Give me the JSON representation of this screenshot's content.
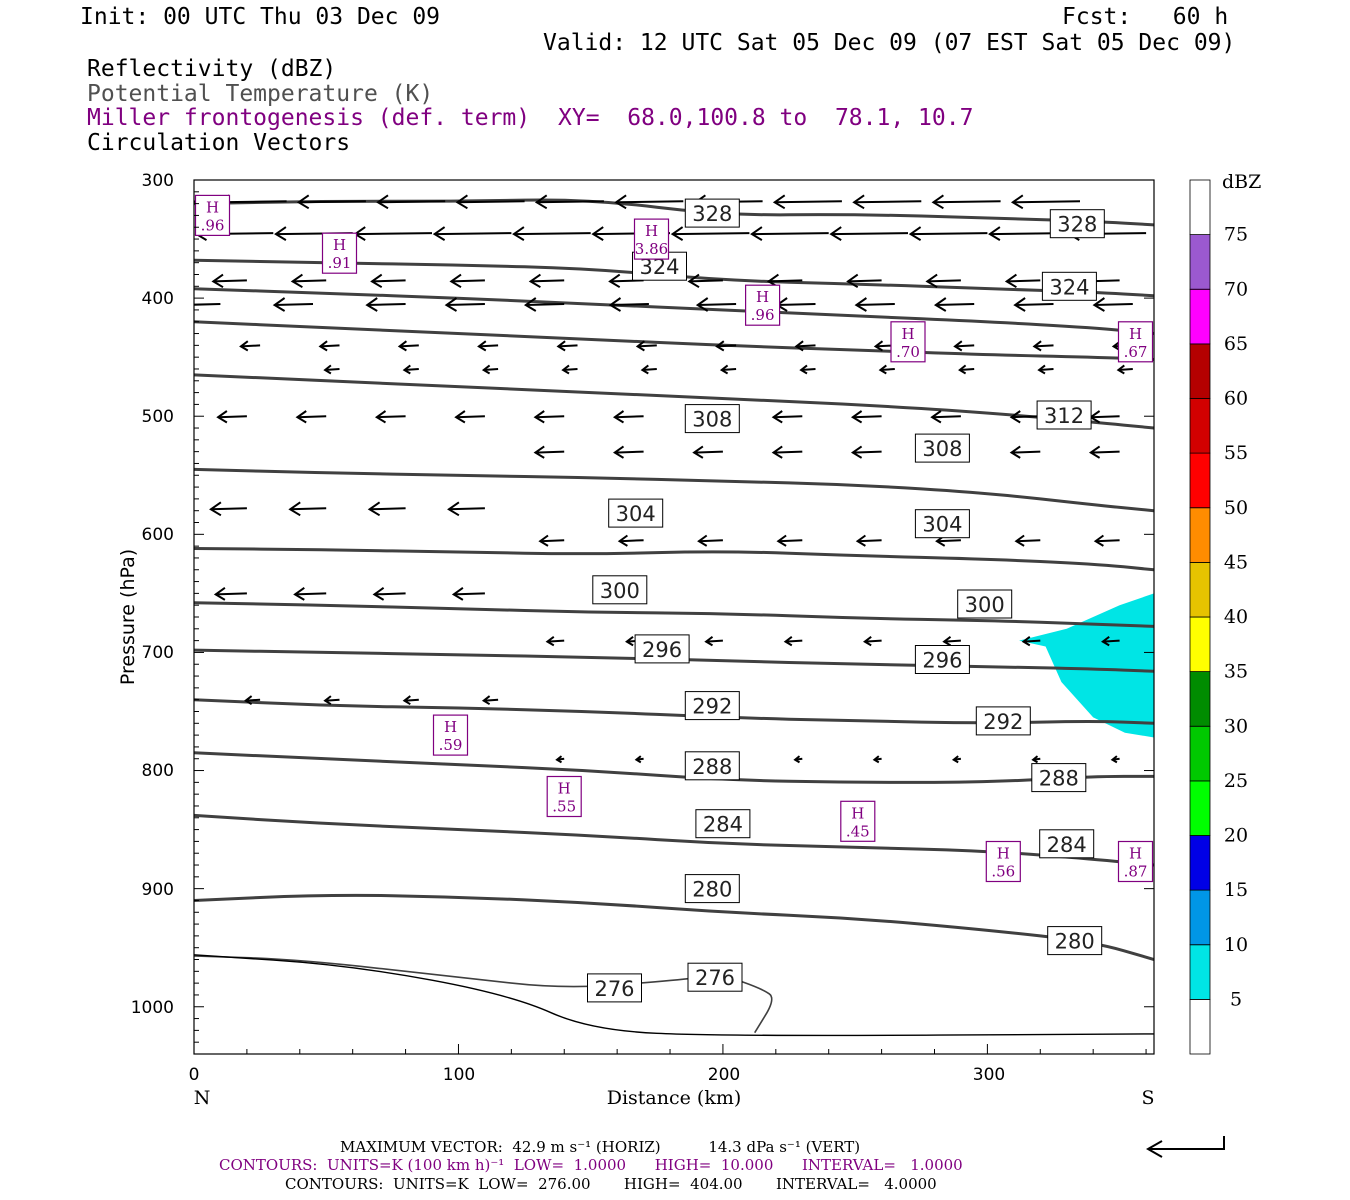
{
  "header": {
    "init": "Init: 00 UTC Thu 03 Dec 09",
    "fcst": "Fcst:   60 h",
    "valid": "Valid: 12 UTC Sat 05 Dec 09 (07 EST Sat 05 Dec 09)",
    "fields": [
      "Reflectivity (dBZ)",
      "Potential Temperature (K)",
      "Miller frontogenesis (def. term)",
      "Circulation Vectors"
    ],
    "xy": "XY=  68.0,100.8 to  78.1, 10.7"
  },
  "colors": {
    "purple": "#800080",
    "isentrope": "#404040",
    "reflectivity_5": "#00e5e5"
  },
  "chart_data": {
    "type": "cross-section",
    "xlabel": "Distance (km)",
    "ylabel": "Pressure (hPa)",
    "xlim": [
      0,
      363
    ],
    "ylim": [
      1040,
      300
    ],
    "x_ticks": [
      "0",
      "100",
      "200",
      "300"
    ],
    "y_ticks": [
      "300",
      "400",
      "500",
      "600",
      "700",
      "800",
      "900",
      "1000"
    ],
    "x_end_labels": {
      "left": "N",
      "right": "S"
    },
    "colorbar": {
      "unit": "dBZ",
      "levels": [
        "5",
        "10",
        "15",
        "20",
        "25",
        "30",
        "35",
        "40",
        "45",
        "50",
        "55",
        "60",
        "65",
        "70",
        "75"
      ],
      "colors": [
        "#ffffff",
        "#00e5e5",
        "#0096e6",
        "#0000e6",
        "#00ff00",
        "#00c800",
        "#008c00",
        "#ffff00",
        "#e6c300",
        "#ff8c00",
        "#ff0000",
        "#d20000",
        "#b40000",
        "#ff00ff",
        "#9b59d0",
        "#ffffff"
      ]
    },
    "isentropes": [
      {
        "value": 276,
        "pts": [
          [
            0,
            957
          ],
          [
            40,
            960
          ],
          [
            100,
            975
          ],
          [
            140,
            985
          ],
          [
            180,
            978
          ],
          [
            200,
            973
          ],
          [
            215,
            985
          ],
          [
            220,
            993
          ],
          [
            212,
            1022
          ]
        ]
      },
      {
        "value": 280,
        "pts": [
          [
            0,
            910
          ],
          [
            50,
            905
          ],
          [
            100,
            907
          ],
          [
            150,
            912
          ],
          [
            200,
            920
          ],
          [
            250,
            925
          ],
          [
            300,
            935
          ],
          [
            340,
            945
          ],
          [
            363,
            960
          ]
        ]
      },
      {
        "value": 284,
        "pts": [
          [
            0,
            838
          ],
          [
            50,
            845
          ],
          [
            100,
            850
          ],
          [
            150,
            855
          ],
          [
            200,
            862
          ],
          [
            250,
            865
          ],
          [
            300,
            868
          ],
          [
            340,
            875
          ],
          [
            363,
            880
          ]
        ]
      },
      {
        "value": 288,
        "pts": [
          [
            0,
            785
          ],
          [
            50,
            790
          ],
          [
            100,
            795
          ],
          [
            150,
            800
          ],
          [
            200,
            808
          ],
          [
            250,
            810
          ],
          [
            300,
            810
          ],
          [
            340,
            805
          ],
          [
            363,
            805
          ]
        ]
      },
      {
        "value": 292,
        "pts": [
          [
            0,
            740
          ],
          [
            50,
            745
          ],
          [
            100,
            747
          ],
          [
            150,
            750
          ],
          [
            200,
            755
          ],
          [
            250,
            758
          ],
          [
            300,
            760
          ],
          [
            340,
            758
          ],
          [
            363,
            760
          ]
        ]
      },
      {
        "value": 296,
        "pts": [
          [
            0,
            698
          ],
          [
            50,
            700
          ],
          [
            100,
            702
          ],
          [
            150,
            704
          ],
          [
            200,
            707
          ],
          [
            250,
            710
          ],
          [
            300,
            712
          ],
          [
            340,
            714
          ],
          [
            363,
            716
          ]
        ]
      },
      {
        "value": 300,
        "pts": [
          [
            0,
            658
          ],
          [
            50,
            660
          ],
          [
            100,
            663
          ],
          [
            150,
            666
          ],
          [
            200,
            667
          ],
          [
            250,
            671
          ],
          [
            300,
            673
          ],
          [
            340,
            676
          ],
          [
            363,
            678
          ]
        ]
      },
      {
        "value": 304,
        "pts": [
          [
            0,
            612
          ],
          [
            50,
            613
          ],
          [
            100,
            615
          ],
          [
            150,
            617
          ],
          [
            200,
            614
          ],
          [
            250,
            618
          ],
          [
            300,
            621
          ],
          [
            340,
            625
          ],
          [
            363,
            630
          ]
        ]
      },
      {
        "value": 308,
        "pts": [
          [
            0,
            545
          ],
          [
            50,
            548
          ],
          [
            100,
            550
          ],
          [
            150,
            552
          ],
          [
            200,
            555
          ],
          [
            250,
            558
          ],
          [
            300,
            565
          ],
          [
            340,
            575
          ],
          [
            363,
            580
          ]
        ]
      },
      {
        "value": 312,
        "pts": [
          [
            0,
            465
          ],
          [
            50,
            470
          ],
          [
            100,
            475
          ],
          [
            150,
            480
          ],
          [
            200,
            485
          ],
          [
            250,
            490
          ],
          [
            300,
            497
          ],
          [
            340,
            505
          ],
          [
            363,
            510
          ]
        ]
      },
      {
        "value": 316,
        "pts": [
          [
            0,
            420
          ],
          [
            50,
            425
          ],
          [
            100,
            430
          ],
          [
            150,
            435
          ],
          [
            200,
            440
          ],
          [
            250,
            444
          ],
          [
            300,
            448
          ],
          [
            340,
            450
          ],
          [
            363,
            452
          ]
        ]
      },
      {
        "value": 320,
        "pts": [
          [
            0,
            392
          ],
          [
            50,
            396
          ],
          [
            100,
            400
          ],
          [
            150,
            405
          ],
          [
            200,
            410
          ],
          [
            250,
            415
          ],
          [
            300,
            420
          ],
          [
            340,
            425
          ],
          [
            363,
            430
          ]
        ]
      },
      {
        "value": 324,
        "pts": [
          [
            0,
            368
          ],
          [
            50,
            370
          ],
          [
            100,
            372
          ],
          [
            150,
            375
          ],
          [
            200,
            385
          ],
          [
            250,
            388
          ],
          [
            300,
            392
          ],
          [
            340,
            395
          ],
          [
            363,
            398
          ]
        ]
      },
      {
        "value": 328,
        "pts": [
          [
            0,
            320
          ],
          [
            50,
            318
          ],
          [
            100,
            318
          ],
          [
            150,
            316
          ],
          [
            200,
            330
          ],
          [
            250,
            329
          ],
          [
            300,
            332
          ],
          [
            340,
            335
          ],
          [
            363,
            338
          ]
        ]
      }
    ],
    "isentrope_labels": [
      {
        "text": "328",
        "x": 196,
        "p": 328
      },
      {
        "text": "328",
        "x": 334,
        "p": 337
      },
      {
        "text": "324",
        "x": 176,
        "p": 373
      },
      {
        "text": "324",
        "x": 331,
        "p": 390
      },
      {
        "text": "312",
        "x": 329,
        "p": 499
      },
      {
        "text": "308",
        "x": 196,
        "p": 502
      },
      {
        "text": "308",
        "x": 283,
        "p": 527
      },
      {
        "text": "304",
        "x": 167,
        "p": 582
      },
      {
        "text": "304",
        "x": 283,
        "p": 591
      },
      {
        "text": "300",
        "x": 161,
        "p": 647
      },
      {
        "text": "300",
        "x": 299,
        "p": 659
      },
      {
        "text": "296",
        "x": 177,
        "p": 697
      },
      {
        "text": "296",
        "x": 283,
        "p": 706
      },
      {
        "text": "292",
        "x": 196,
        "p": 745
      },
      {
        "text": "292",
        "x": 306,
        "p": 758
      },
      {
        "text": "288",
        "x": 196,
        "p": 796
      },
      {
        "text": "288",
        "x": 327,
        "p": 806
      },
      {
        "text": "284",
        "x": 200,
        "p": 845
      },
      {
        "text": "284",
        "x": 330,
        "p": 862
      },
      {
        "text": "280",
        "x": 196,
        "p": 900
      },
      {
        "text": "280",
        "x": 333,
        "p": 944
      },
      {
        "text": "276",
        "x": 159,
        "p": 984
      },
      {
        "text": "276",
        "x": 197,
        "p": 975
      }
    ],
    "frontogenesis_maxima": [
      {
        "mark": "H",
        "value": ".96",
        "x": 7,
        "p": 330
      },
      {
        "mark": "H",
        "value": ".91",
        "x": 55,
        "p": 362
      },
      {
        "mark": "H",
        "value": "3.86",
        "x": 173,
        "p": 350
      },
      {
        "mark": "H",
        "value": ".96",
        "x": 215,
        "p": 406
      },
      {
        "mark": "H",
        "value": ".70",
        "x": 270,
        "p": 437
      },
      {
        "mark": "H",
        "value": ".67",
        "x": 356,
        "p": 437
      },
      {
        "mark": "H",
        "value": ".59",
        "x": 97,
        "p": 770
      },
      {
        "mark": "H",
        "value": ".55",
        "x": 140,
        "p": 822
      },
      {
        "mark": "H",
        "value": ".45",
        "x": 251,
        "p": 843
      },
      {
        "mark": "H",
        "value": ".56",
        "x": 306,
        "p": 877
      },
      {
        "mark": "H",
        "value": ".87",
        "x": 356,
        "p": 877
      }
    ],
    "reflectivity_area": {
      "value": "5",
      "pts": [
        [
          312,
          690
        ],
        [
          330,
          680
        ],
        [
          350,
          660
        ],
        [
          363,
          650
        ],
        [
          363,
          772
        ],
        [
          352,
          768
        ],
        [
          340,
          755
        ],
        [
          328,
          725
        ],
        [
          322,
          695
        ]
      ]
    },
    "vector_rows": [
      {
        "p": 318,
        "x": [
          5,
          35,
          65,
          95,
          125,
          155,
          185,
          215,
          245,
          275,
          305,
          335
        ],
        "u": -28
      },
      {
        "p": 345,
        "x": [
          30,
          60,
          90,
          120,
          150,
          180,
          210,
          240,
          270,
          300,
          330,
          360
        ],
        "u": -32
      },
      {
        "p": 385,
        "x": [
          20,
          50,
          80,
          110,
          140,
          170,
          200,
          230,
          260,
          290,
          320,
          350
        ],
        "u": -14
      },
      {
        "p": 405,
        "x": [
          10,
          45,
          80,
          110,
          140,
          172,
          205,
          235,
          265,
          295,
          325,
          355
        ],
        "u": -16
      },
      {
        "p": 440,
        "x": [
          25,
          55,
          85,
          115,
          145,
          175,
          205,
          235,
          265,
          295,
          325,
          355
        ],
        "u": -8
      },
      {
        "p": 460,
        "x": [
          55,
          85,
          115,
          145,
          175,
          205,
          235,
          265,
          295,
          325,
          355
        ],
        "u": -6
      },
      {
        "p": 500,
        "x": [
          20,
          50,
          80,
          110,
          140,
          170,
          200,
          230,
          260,
          290,
          320,
          350
        ],
        "u": -12
      },
      {
        "p": 530,
        "x": [
          140,
          170,
          200,
          230,
          260,
          290,
          320,
          350
        ],
        "u": -12
      },
      {
        "p": 578,
        "x": [
          20,
          50,
          80,
          110
        ],
        "u": -15
      },
      {
        "p": 605,
        "x": [
          140,
          170,
          200,
          230,
          260,
          290,
          320,
          350
        ],
        "u": -10
      },
      {
        "p": 650,
        "x": [
          20,
          50,
          80,
          110
        ],
        "u": -13
      },
      {
        "p": 690,
        "x": [
          140,
          170,
          200,
          230,
          260,
          290,
          320,
          350
        ],
        "u": -7
      },
      {
        "p": 740,
        "x": [
          25,
          55,
          85,
          115
        ],
        "u": -6
      },
      {
        "p": 790,
        "x": [
          140,
          170,
          200,
          230,
          260,
          290,
          320,
          350
        ],
        "u": -3
      }
    ]
  },
  "footer": {
    "max_vector": "MAXIMUM VECTOR:  42.9 m s⁻¹ (HORIZ)          14.3 dPa s⁻¹ (VERT)",
    "contours_1": "CONTOURS:  UNITS=K (100 km h)⁻¹  LOW=  1.0000      HIGH=  10.000      INTERVAL=   1.0000",
    "contours_2": "CONTOURS:  UNITS=K  LOW=  276.00       HIGH=  404.00       INTERVAL=   4.0000"
  }
}
